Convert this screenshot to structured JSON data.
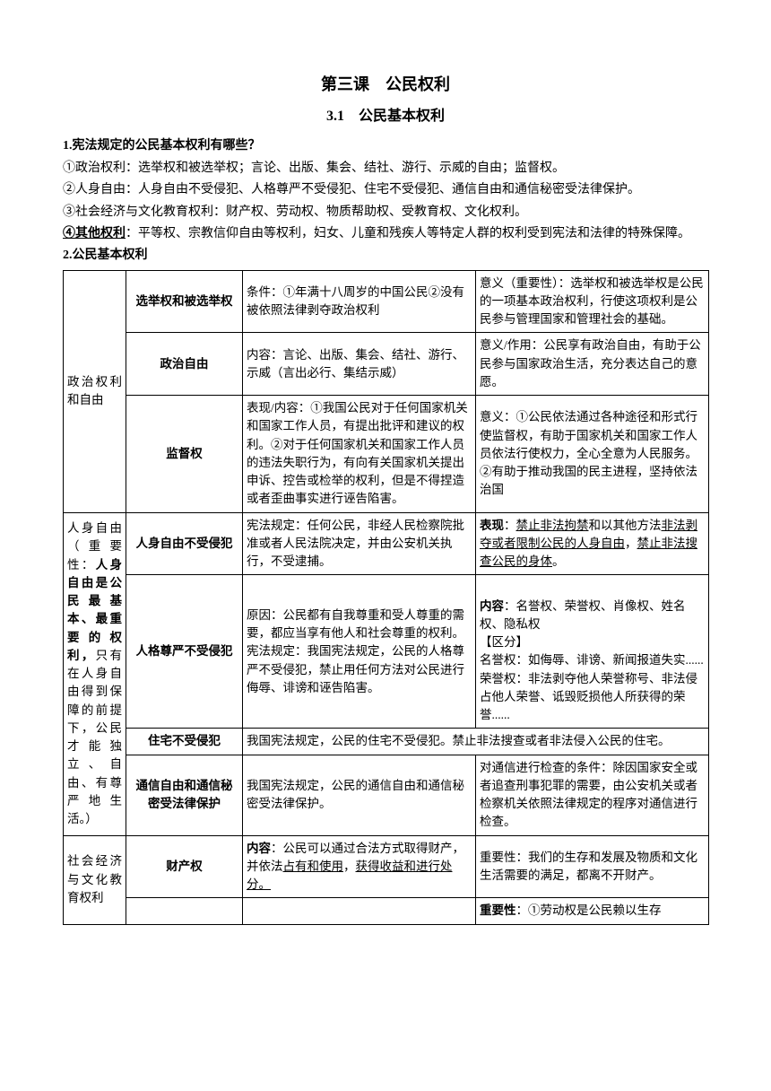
{
  "heading1": "第三课　公民权利",
  "heading2": "3.1　公民基本权利",
  "q1_title": "1.宪法规定的公民基本权利有哪些？",
  "q1_l1": "①政治权利：选举权和被选举权；言论、出版、集会、结社、游行、示威的自由；监督权。",
  "q1_l2": "②人身自由：人身自由不受侵犯、人格尊严不受侵犯、住宅不受侵犯、通信自由和通信秘密受法律保护。",
  "q1_l3": "③社会经济与文化教育权利：财产权、劳动权、物质帮助权、受教育权、文化权利。",
  "q1_l4a": "④其他权利",
  "q1_l4b": "：平等权、宗教信仰自由等权利，妇女、儿童和残疾人等特定人群的权利受到宪法和法律的特殊保障。",
  "q2_title": "2.公民基本权利",
  "cat1": "政治权利和自由",
  "cat2a": "人身自由（重要性：",
  "cat2b": "人身自由是公民最基本、最重要的权利，",
  "cat2c": "只有在人身自由得到保障的前提下，公民才能独立、自由、有尊严地生活。）",
  "cat3": "社会经济与文化教育权利",
  "r1_name": "选举权和被选举权",
  "r1_c3": "条件：①年满十八周岁的中国公民②没有被依照法律剥夺政治权利",
  "r1_c4": "意义（重要性）：选举权和被选举权是公民的一项基本政治权利，行使这项权利是公民参与管理国家和管理社会的基础。",
  "r2_name": "政治自由",
  "r2_c3": "内容：言论、出版、集会、结社、游行、示威（言出必行、集结示威）",
  "r2_c4": "意义/作用：公民享有政治自由，有助于公民参与国家政治生活，充分表达自己的意愿。",
  "r3_name": "监督权",
  "r3_c3": "表现/内容：①我国公民对于任何国家机关和国家工作人员，有提出批评和建议的权利。②对于任何国家机关和国家工作人员的违法失职行为，有向有关国家机关提出申诉、控告或检举的权利，但是不得捏造或者歪曲事实进行诬告陷害。",
  "r3_c4": "意义：①公民依法通过各种途径和形式行使监督权，有助于国家机关和国家工作人员依法行使权力，全心全意为人民服务。②有助于推动我国的民主进程，坚持依法治国",
  "r4_name": "人身自由不受侵犯",
  "r4_c3": "宪法规定：任何公民，非经人民检察院批准或者人民法院决定，并由公安机关执行，不受逮捕。",
  "r4_c4a": "表现",
  "r4_c4b": "：",
  "r4_c4c": "禁止非法拘禁",
  "r4_c4d": "和以其他方法",
  "r4_c4e": "非法剥夺或者限制公民的人身自由",
  "r4_c4f": "，",
  "r4_c4g": "禁止非法搜查公民的身体",
  "r4_c4h": "。",
  "r5_name": "人格尊严不受侵犯",
  "r5_c3": "原因：公民都有自我尊重和受人尊重的需要，都应当享有他人和社会尊重的权利。\n宪法规定：我国宪法规定，公民的人格尊严不受侵犯，禁止用任何方法对公民进行侮辱、诽谤和诬告陷害。",
  "r5_c4a": "内容",
  "r5_c4b": "：名誉权、荣誉权、肖像权、姓名权、隐私权\n【区分】\n名誉权：如侮辱、诽谤、新闻报道失实......\n荣誉权：非法剥夺他人荣誉称号、非法侵占他人荣誉、诋毁贬损他人所获得的荣誉......",
  "r6_name": "住宅不受侵犯",
  "r6_c3": "我国宪法规定，公民的住宅不受侵犯。禁止非法搜查或者非法侵入公民的住宅。",
  "r7_name": "通信自由和通信秘密受法律保护",
  "r7_c3": "我国宪法规定，公民的通信自由和通信秘密受法律保护。",
  "r7_c4": "对通信进行检查的条件：除因国家安全或者追查刑事犯罪的需要，由公安机关或者检察机关依照法律规定的程序对通信进行检查。",
  "r8_name": "财产权",
  "r8_c3a": "内容",
  "r8_c3b": "：公民可以通过合法方式取得财产，并依法",
  "r8_c3c": "占有和使用",
  "r8_c3d": "，",
  "r8_c3e": "获得收益和进行处分。",
  "r8_c4": "重要性：我们的生存和发展及物质和文化生活需要的满足，都离不开财产。",
  "r9_c4a": "重要性",
  "r9_c4b": "：①劳动权是公民赖以生存"
}
